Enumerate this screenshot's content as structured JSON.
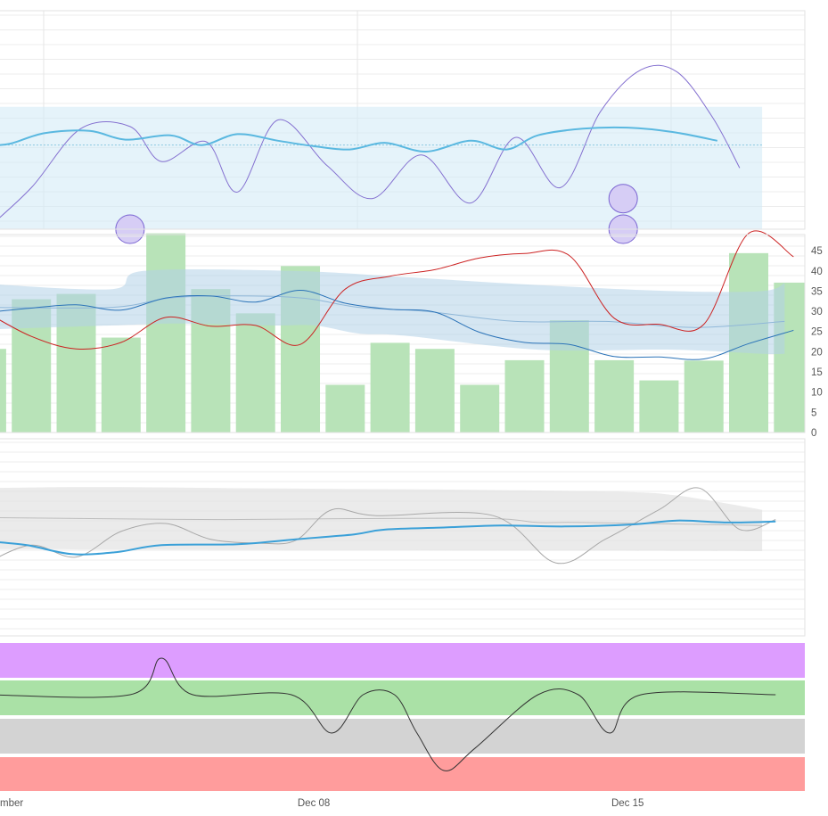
{
  "x_axis": {
    "tick_labels": [
      {
        "label": "mber",
        "day": 1
      },
      {
        "label": "Dec 08",
        "day": 8
      },
      {
        "label": "Dec 15",
        "day": 15
      }
    ],
    "range_days": [
      1,
      18
    ]
  },
  "colors": {
    "grid": "#ececec",
    "panel1_band": "#d4ebf6",
    "panel1_avg": "#5ab8e0",
    "panel1_baseline": "#88c7e0",
    "panel1_curve": "#8470d0",
    "marker_fill": "#d6cdf5",
    "marker_stroke": "#7a64d2",
    "bars": "#b8e3b8",
    "panel2_band": "#b3d1e8",
    "panel2_blue": "#2b73b8",
    "panel2_red": "#cc2222",
    "panel2_mid": "#8fb7d8",
    "panel3_band": "#e4e4e4",
    "panel3_blue": "#3aa0d8",
    "panel3_gray": "#a8a8a8",
    "panel3_avg": "#bdbdbd",
    "state_colors": [
      "#dd9dff",
      "#aae1a6",
      "#d3d3d3",
      "#ff9c9c"
    ],
    "state_line": "#333333"
  },
  "chart_data": [
    {
      "type": "line",
      "panel": "top",
      "y_range": [
        0,
        100
      ],
      "grid": true,
      "series": [
        {
          "role": "band_upper",
          "points": [
            [
              0.7,
              56
            ],
            [
              8,
              56
            ],
            [
              18,
              56
            ]
          ]
        },
        {
          "role": "band_lower",
          "points": [
            [
              0.7,
              0
            ],
            [
              18,
              0
            ]
          ]
        },
        {
          "role": "baseline",
          "points": [
            [
              0.7,
              38.5
            ],
            [
              18,
              38.5
            ]
          ]
        },
        {
          "role": "average",
          "points": [
            [
              0.7,
              38.5
            ],
            [
              1.2,
              39
            ],
            [
              2,
              44
            ],
            [
              3,
              45
            ],
            [
              3.8,
              41
            ],
            [
              4.8,
              43
            ],
            [
              5.5,
              38.5
            ],
            [
              6.3,
              43.5
            ],
            [
              7.2,
              40.5
            ],
            [
              8,
              38
            ],
            [
              8.8,
              36.5
            ],
            [
              9.6,
              39.5
            ],
            [
              10.5,
              35.5
            ],
            [
              11.5,
              40.5
            ],
            [
              12.3,
              36.5
            ],
            [
              13,
              43
            ],
            [
              14,
              46
            ],
            [
              15,
              46.5
            ],
            [
              16,
              44.5
            ],
            [
              17,
              40.5
            ]
          ]
        },
        {
          "role": "curve",
          "points": [
            [
              0.7,
              0
            ],
            [
              1.7,
              19
            ],
            [
              2.8,
              46
            ],
            [
              3.9,
              47
            ],
            [
              4.6,
              31
            ],
            [
              5.6,
              40
            ],
            [
              6.3,
              17
            ],
            [
              7.2,
              50
            ],
            [
              8.3,
              29
            ],
            [
              9.3,
              14
            ],
            [
              10.4,
              34
            ],
            [
              11.5,
              12
            ],
            [
              12.5,
              42
            ],
            [
              13.5,
              19
            ],
            [
              14.4,
              54
            ],
            [
              15.3,
              73
            ],
            [
              16.1,
              72
            ],
            [
              16.9,
              51
            ],
            [
              17.5,
              28
            ]
          ]
        }
      ],
      "markers": [
        {
          "x": 3.9,
          "y": 0
        },
        {
          "x": 14.9,
          "y": 14
        },
        {
          "x": 14.9,
          "y": 0
        }
      ]
    },
    {
      "type": "bar",
      "panel": "middle",
      "y_ticks": [
        0,
        5,
        10,
        15,
        20,
        25,
        30,
        35,
        40,
        45
      ],
      "y_range": [
        0,
        49
      ],
      "grid": true,
      "bars": [
        {
          "x": 0.7,
          "value": 20.7
        },
        {
          "x": 1.7,
          "value": 33
        },
        {
          "x": 2.7,
          "value": 34.3
        },
        {
          "x": 3.7,
          "value": 23.5
        },
        {
          "x": 4.7,
          "value": 49.3
        },
        {
          "x": 5.7,
          "value": 35.5
        },
        {
          "x": 6.7,
          "value": 29.5
        },
        {
          "x": 7.7,
          "value": 41.2
        },
        {
          "x": 8.7,
          "value": 11.8
        },
        {
          "x": 9.7,
          "value": 22.2
        },
        {
          "x": 10.7,
          "value": 20.7
        },
        {
          "x": 11.7,
          "value": 11.8
        },
        {
          "x": 12.7,
          "value": 17.9
        },
        {
          "x": 13.7,
          "value": 27.8
        },
        {
          "x": 14.7,
          "value": 17.9
        },
        {
          "x": 15.7,
          "value": 12.9
        },
        {
          "x": 16.7,
          "value": 17.8
        },
        {
          "x": 17.7,
          "value": 44.4
        },
        {
          "x": 18.7,
          "value": 37.1
        }
      ],
      "series": [
        {
          "role": "band_upper",
          "points": [
            [
              0.7,
              36.8
            ],
            [
              3.5,
              35.5
            ],
            [
              4.2,
              40
            ],
            [
              7.5,
              40
            ],
            [
              10,
              38.5
            ],
            [
              13,
              36.5
            ],
            [
              16,
              35
            ],
            [
              18,
              35
            ],
            [
              18.5,
              37
            ]
          ]
        },
        {
          "role": "band_lower",
          "points": [
            [
              0.7,
              25.5
            ],
            [
              3.5,
              26.5
            ],
            [
              5,
              27
            ],
            [
              7,
              26.5
            ],
            [
              8,
              26.5
            ],
            [
              9,
              24.5
            ],
            [
              10,
              24
            ],
            [
              13,
              20.5
            ],
            [
              16,
              20.5
            ],
            [
              18,
              19.5
            ],
            [
              18.5,
              19.5
            ]
          ]
        },
        {
          "role": "band_mid",
          "points": [
            [
              0.7,
              31
            ],
            [
              3.5,
              31
            ],
            [
              5,
              33.5
            ],
            [
              7.5,
              33.5
            ],
            [
              9,
              31
            ],
            [
              10.5,
              30
            ],
            [
              12.5,
              27.5
            ],
            [
              14.5,
              27.5
            ],
            [
              16.5,
              26
            ],
            [
              18.5,
              27.5
            ]
          ]
        },
        {
          "role": "blue",
          "points": [
            [
              0.7,
              29.7
            ],
            [
              1.7,
              30.8
            ],
            [
              2.7,
              31.6
            ],
            [
              3.7,
              30.3
            ],
            [
              4.7,
              33.3
            ],
            [
              5.7,
              33.8
            ],
            [
              6.7,
              32.3
            ],
            [
              7.7,
              35.2
            ],
            [
              8.7,
              32
            ],
            [
              9.7,
              30.5
            ],
            [
              10.7,
              29.8
            ],
            [
              11.7,
              24.8
            ],
            [
              12.7,
              22.3
            ],
            [
              13.7,
              21.8
            ],
            [
              14.7,
              18.8
            ],
            [
              15.7,
              18.7
            ],
            [
              16.7,
              18.2
            ],
            [
              17.7,
              22
            ],
            [
              18.7,
              25.3
            ]
          ]
        },
        {
          "role": "red",
          "points": [
            [
              0.7,
              29.7
            ],
            [
              1.7,
              23.8
            ],
            [
              2.7,
              20.7
            ],
            [
              3.7,
              22.3
            ],
            [
              4.7,
              28.5
            ],
            [
              5.7,
              26.3
            ],
            [
              6.7,
              26.5
            ],
            [
              7.7,
              21.8
            ],
            [
              8.7,
              35.5
            ],
            [
              9.7,
              38.7
            ],
            [
              10.7,
              40.3
            ],
            [
              11.7,
              43.2
            ],
            [
              12.7,
              44.3
            ],
            [
              13.7,
              43.8
            ],
            [
              14.7,
              28.3
            ],
            [
              15.7,
              26.8
            ],
            [
              16.7,
              26.8
            ],
            [
              17.7,
              49.3
            ],
            [
              18.7,
              43.5
            ]
          ]
        }
      ]
    },
    {
      "type": "line",
      "panel": "lower",
      "y_range": [
        0,
        100
      ],
      "grid": true,
      "series": [
        {
          "role": "band_upper",
          "points": [
            [
              0.7,
              75
            ],
            [
              3,
              75.5
            ],
            [
              6,
              75
            ],
            [
              9,
              74.5
            ],
            [
              12,
              74
            ],
            [
              15,
              73
            ],
            [
              16,
              71.5
            ],
            [
              17,
              68
            ],
            [
              18,
              64
            ]
          ]
        },
        {
          "role": "band_lower",
          "points": [
            [
              0.7,
              44
            ],
            [
              18,
              43
            ]
          ]
        },
        {
          "role": "average",
          "points": [
            [
              0.7,
              60
            ],
            [
              3,
              59.5
            ],
            [
              6,
              59
            ],
            [
              9,
              59.5
            ],
            [
              12,
              59.5
            ],
            [
              13,
              57.5
            ],
            [
              14,
              57.5
            ],
            [
              18,
              56
            ]
          ]
        },
        {
          "role": "gray",
          "points": [
            [
              0.7,
              37
            ],
            [
              1.7,
              46
            ],
            [
              2.7,
              40
            ],
            [
              3.7,
              53
            ],
            [
              4.7,
              57
            ],
            [
              5.7,
              49
            ],
            [
              6.8,
              47
            ],
            [
              7.6,
              48.5
            ],
            [
              8.4,
              64
            ],
            [
              9.4,
              61
            ],
            [
              12,
              61
            ],
            [
              13.4,
              37
            ],
            [
              14.5,
              49
            ],
            [
              15.7,
              64
            ],
            [
              16.6,
              75
            ],
            [
              17.5,
              54
            ],
            [
              18.3,
              59
            ]
          ]
        },
        {
          "role": "blue",
          "points": [
            [
              0.7,
              48
            ],
            [
              1.6,
              46
            ],
            [
              2.6,
              41.5
            ],
            [
              3.6,
              42.5
            ],
            [
              4.6,
              46
            ],
            [
              6.3,
              46.5
            ],
            [
              7.6,
              49
            ],
            [
              8.9,
              51.5
            ],
            [
              9.6,
              54
            ],
            [
              10.9,
              55
            ],
            [
              12.2,
              56
            ],
            [
              13.6,
              55.5
            ],
            [
              15.1,
              56.5
            ],
            [
              16.1,
              58.5
            ],
            [
              17.2,
              57.5
            ],
            [
              18.3,
              58
            ]
          ]
        }
      ]
    },
    {
      "type": "line",
      "panel": "state",
      "levels": 4,
      "series": [
        {
          "role": "state",
          "points": [
            [
              0.7,
              2
            ],
            [
              3.9,
              2
            ],
            [
              4.6,
              3
            ],
            [
              5.3,
              2
            ],
            [
              7.5,
              2
            ],
            [
              8.4,
              1
            ],
            [
              9.1,
              2
            ],
            [
              9.8,
              2
            ],
            [
              10.3,
              1
            ],
            [
              10.9,
              0
            ],
            [
              11.6,
              0.6
            ],
            [
              13.0,
              2
            ],
            [
              13.9,
              2
            ],
            [
              14.6,
              1
            ],
            [
              15.3,
              2
            ],
            [
              18.3,
              2
            ]
          ]
        }
      ]
    }
  ]
}
